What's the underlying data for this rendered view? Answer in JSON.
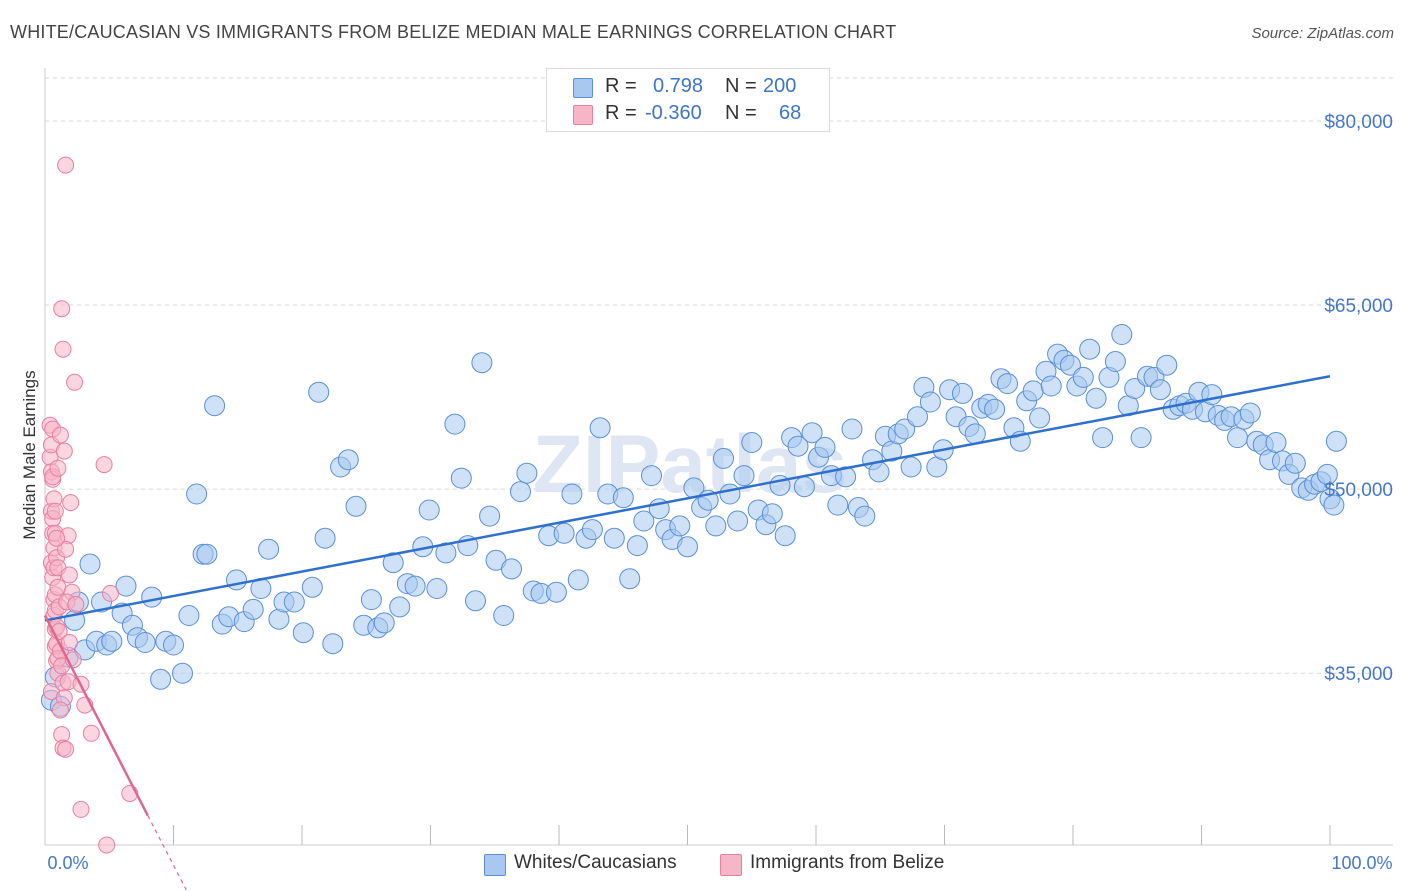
{
  "title": "WHITE/CAUCASIAN VS IMMIGRANTS FROM BELIZE MEDIAN MALE EARNINGS CORRELATION CHART",
  "source": "Source: ZipAtlas.com",
  "watermark": "ZIPatlas",
  "legend_top": {
    "rows": [
      {
        "r_label": "R =",
        "r_value": "0.798",
        "n_label": "N =",
        "n_value": "200"
      },
      {
        "r_label": "R =",
        "r_value": "-0.360",
        "n_label": "N =",
        "n_value": "68"
      }
    ]
  },
  "colors": {
    "blue_fill": "#a8c8f0",
    "blue_stroke": "#5a8fd8",
    "blue_line": "#2f6fce",
    "pink_fill": "#f7b5c8",
    "pink_stroke": "#e87fa0",
    "pink_line": "#e0668f",
    "accent_text": "#4477cc",
    "grid": "#d9d9d9"
  },
  "chart_data": {
    "type": "scatter",
    "title": "WHITE/CAUCASIAN VS IMMIGRANTS FROM BELIZE MEDIAN MALE EARNINGS CORRELATION CHART",
    "xlabel": "",
    "ylabel": "Median Male Earnings",
    "xlim": [
      0,
      100
    ],
    "ylim": [
      21000,
      83500
    ],
    "x_tick_labels": [
      "0.0%",
      "100.0%"
    ],
    "y_ticks": [
      35000,
      50000,
      65000,
      80000
    ],
    "y_tick_labels": [
      "$35,000",
      "$50,000",
      "$65,000",
      "$80,000"
    ],
    "legend": [
      "Whites/Caucasians",
      "Immigrants from Belize"
    ],
    "series": [
      {
        "name": "Whites/Caucasians",
        "r": 0.798,
        "n": 200,
        "trend": {
          "x": [
            0,
            100
          ],
          "y": [
            39300,
            59200
          ]
        },
        "points": [
          [
            0.5,
            32800
          ],
          [
            0.8,
            34700
          ],
          [
            1.2,
            32300
          ],
          [
            1.8,
            36300
          ],
          [
            2.3,
            39300
          ],
          [
            2.6,
            40800
          ],
          [
            3.1,
            36900
          ],
          [
            3.5,
            43900
          ],
          [
            4.0,
            37600
          ],
          [
            4.4,
            40800
          ],
          [
            4.8,
            37300
          ],
          [
            5.2,
            37600
          ],
          [
            6.0,
            39900
          ],
          [
            6.3,
            42100
          ],
          [
            6.8,
            38900
          ],
          [
            7.2,
            37900
          ],
          [
            7.8,
            37500
          ],
          [
            8.3,
            41200
          ],
          [
            9.0,
            34500
          ],
          [
            9.4,
            37600
          ],
          [
            10.0,
            37300
          ],
          [
            10.7,
            35000
          ],
          [
            11.2,
            39700
          ],
          [
            11.8,
            49600
          ],
          [
            12.3,
            44700
          ],
          [
            12.6,
            44700
          ],
          [
            13.2,
            56800
          ],
          [
            13.8,
            39000
          ],
          [
            14.3,
            39600
          ],
          [
            14.9,
            42600
          ],
          [
            15.5,
            39200
          ],
          [
            16.2,
            40200
          ],
          [
            16.8,
            41900
          ],
          [
            17.4,
            45100
          ],
          [
            18.2,
            39400
          ],
          [
            18.6,
            40800
          ],
          [
            19.4,
            40800
          ],
          [
            20.1,
            38300
          ],
          [
            20.8,
            42000
          ],
          [
            21.3,
            57900
          ],
          [
            21.8,
            46000
          ],
          [
            22.4,
            37400
          ],
          [
            23.0,
            51800
          ],
          [
            23.6,
            52400
          ],
          [
            24.2,
            48600
          ],
          [
            24.8,
            38900
          ],
          [
            25.4,
            41000
          ],
          [
            25.9,
            38700
          ],
          [
            26.4,
            39100
          ],
          [
            27.1,
            44000
          ],
          [
            27.6,
            40400
          ],
          [
            28.2,
            42300
          ],
          [
            28.8,
            42100
          ],
          [
            29.4,
            45300
          ],
          [
            29.9,
            48300
          ],
          [
            30.5,
            41900
          ],
          [
            31.2,
            44800
          ],
          [
            31.9,
            55300
          ],
          [
            32.4,
            50900
          ],
          [
            32.9,
            45400
          ],
          [
            33.5,
            40900
          ],
          [
            34.0,
            60300
          ],
          [
            34.6,
            47800
          ],
          [
            35.1,
            44200
          ],
          [
            35.7,
            39700
          ],
          [
            36.3,
            43500
          ],
          [
            37.0,
            49800
          ],
          [
            37.5,
            51300
          ],
          [
            38.0,
            41700
          ],
          [
            38.6,
            41500
          ],
          [
            39.2,
            46200
          ],
          [
            39.8,
            41600
          ],
          [
            40.4,
            46400
          ],
          [
            41.0,
            49600
          ],
          [
            41.5,
            42600
          ],
          [
            42.1,
            46000
          ],
          [
            42.6,
            46700
          ],
          [
            43.2,
            55000
          ],
          [
            43.8,
            49600
          ],
          [
            44.3,
            46000
          ],
          [
            45.0,
            49300
          ],
          [
            45.5,
            42700
          ],
          [
            46.1,
            45400
          ],
          [
            46.6,
            47400
          ],
          [
            47.2,
            51100
          ],
          [
            47.8,
            48400
          ],
          [
            48.3,
            46700
          ],
          [
            48.8,
            45900
          ],
          [
            49.4,
            47000
          ],
          [
            50.0,
            45300
          ],
          [
            50.5,
            50100
          ],
          [
            51.1,
            48500
          ],
          [
            51.6,
            49100
          ],
          [
            52.2,
            47000
          ],
          [
            52.8,
            52500
          ],
          [
            53.3,
            49600
          ],
          [
            53.9,
            47400
          ],
          [
            54.4,
            51100
          ],
          [
            55.0,
            53800
          ],
          [
            55.5,
            48300
          ],
          [
            56.1,
            47100
          ],
          [
            56.6,
            48000
          ],
          [
            57.2,
            50300
          ],
          [
            57.6,
            46200
          ],
          [
            58.1,
            54200
          ],
          [
            58.6,
            53500
          ],
          [
            59.1,
            50200
          ],
          [
            59.7,
            54600
          ],
          [
            60.2,
            52600
          ],
          [
            60.7,
            53400
          ],
          [
            61.2,
            51100
          ],
          [
            61.7,
            48700
          ],
          [
            62.3,
            51000
          ],
          [
            62.8,
            54900
          ],
          [
            63.3,
            48500
          ],
          [
            63.8,
            47800
          ],
          [
            64.4,
            52400
          ],
          [
            64.9,
            51400
          ],
          [
            65.4,
            54300
          ],
          [
            65.9,
            53100
          ],
          [
            66.4,
            54500
          ],
          [
            66.9,
            54900
          ],
          [
            67.4,
            51800
          ],
          [
            67.9,
            55900
          ],
          [
            68.4,
            58300
          ],
          [
            68.9,
            57100
          ],
          [
            69.4,
            51800
          ],
          [
            69.9,
            53200
          ],
          [
            70.4,
            58100
          ],
          [
            70.9,
            55900
          ],
          [
            71.4,
            57800
          ],
          [
            71.9,
            55100
          ],
          [
            72.4,
            54500
          ],
          [
            72.9,
            56600
          ],
          [
            73.4,
            56900
          ],
          [
            73.9,
            56500
          ],
          [
            74.4,
            59000
          ],
          [
            74.9,
            58600
          ],
          [
            75.4,
            55000
          ],
          [
            75.9,
            53900
          ],
          [
            76.4,
            57200
          ],
          [
            76.9,
            58000
          ],
          [
            77.4,
            55800
          ],
          [
            77.9,
            59600
          ],
          [
            78.3,
            58400
          ],
          [
            78.8,
            61000
          ],
          [
            79.3,
            60500
          ],
          [
            79.8,
            60100
          ],
          [
            80.3,
            58400
          ],
          [
            80.8,
            59100
          ],
          [
            81.3,
            61400
          ],
          [
            81.8,
            57400
          ],
          [
            82.3,
            54200
          ],
          [
            82.8,
            59100
          ],
          [
            83.3,
            60400
          ],
          [
            83.8,
            62600
          ],
          [
            84.3,
            56800
          ],
          [
            84.8,
            58200
          ],
          [
            85.3,
            54200
          ],
          [
            85.8,
            59200
          ],
          [
            86.3,
            59100
          ],
          [
            86.8,
            58100
          ],
          [
            87.3,
            60100
          ],
          [
            87.8,
            56500
          ],
          [
            88.3,
            56800
          ],
          [
            88.8,
            57000
          ],
          [
            89.3,
            56500
          ],
          [
            89.8,
            57900
          ],
          [
            90.3,
            56300
          ],
          [
            90.8,
            57700
          ],
          [
            91.3,
            56000
          ],
          [
            91.8,
            55600
          ],
          [
            92.3,
            55900
          ],
          [
            92.8,
            54200
          ],
          [
            93.3,
            55700
          ],
          [
            93.8,
            56200
          ],
          [
            94.3,
            53900
          ],
          [
            94.8,
            53600
          ],
          [
            95.3,
            52400
          ],
          [
            95.8,
            53800
          ],
          [
            96.3,
            52300
          ],
          [
            96.8,
            51200
          ],
          [
            97.3,
            52100
          ],
          [
            97.8,
            50100
          ],
          [
            98.3,
            49900
          ],
          [
            98.8,
            50400
          ],
          [
            99.3,
            50600
          ],
          [
            99.8,
            51200
          ],
          [
            100.0,
            49200
          ],
          [
            100.3,
            48700
          ],
          [
            100.5,
            53900
          ]
        ]
      },
      {
        "name": "Immigrants from Belize",
        "r": -0.36,
        "n": 68,
        "trend": {
          "x": [
            0,
            8
          ],
          "y": [
            39700,
            23400
          ]
        },
        "trend_dashed": {
          "x": [
            8,
            11
          ],
          "y": [
            23400,
            17000
          ]
        },
        "points": [
          [
            0.4,
            55200
          ],
          [
            0.4,
            52600
          ],
          [
            0.5,
            51400
          ],
          [
            0.5,
            48200
          ],
          [
            0.6,
            46400
          ],
          [
            0.5,
            44000
          ],
          [
            0.6,
            42800
          ],
          [
            0.7,
            41000
          ],
          [
            0.7,
            39700
          ],
          [
            0.8,
            38600
          ],
          [
            0.8,
            37200
          ],
          [
            0.9,
            36000
          ],
          [
            0.6,
            50800
          ],
          [
            0.6,
            47600
          ],
          [
            0.7,
            45200
          ],
          [
            0.7,
            43600
          ],
          [
            0.8,
            41400
          ],
          [
            0.8,
            40100
          ],
          [
            0.9,
            38800
          ],
          [
            0.9,
            37400
          ],
          [
            1.0,
            36200
          ],
          [
            1.0,
            35000
          ],
          [
            0.5,
            33500
          ],
          [
            0.5,
            53600
          ],
          [
            0.6,
            54900
          ],
          [
            0.6,
            51000
          ],
          [
            0.7,
            49200
          ],
          [
            0.8,
            48200
          ],
          [
            0.8,
            46400
          ],
          [
            0.9,
            44400
          ],
          [
            1.0,
            43600
          ],
          [
            1.0,
            42000
          ],
          [
            1.1,
            40400
          ],
          [
            1.1,
            38400
          ],
          [
            1.2,
            36800
          ],
          [
            1.3,
            35600
          ],
          [
            1.4,
            34200
          ],
          [
            1.5,
            33000
          ],
          [
            1.2,
            32000
          ],
          [
            1.3,
            30000
          ],
          [
            1.4,
            28900
          ],
          [
            1.6,
            28800
          ],
          [
            1.6,
            76400
          ],
          [
            1.3,
            64700
          ],
          [
            1.4,
            61400
          ],
          [
            2.3,
            58700
          ],
          [
            1.2,
            54400
          ],
          [
            1.5,
            53100
          ],
          [
            1.0,
            51700
          ],
          [
            2.0,
            48900
          ],
          [
            1.8,
            46200
          ],
          [
            1.6,
            45100
          ],
          [
            1.9,
            43000
          ],
          [
            2.1,
            41600
          ],
          [
            1.7,
            40800
          ],
          [
            2.4,
            40600
          ],
          [
            1.9,
            37500
          ],
          [
            2.2,
            36100
          ],
          [
            1.8,
            34300
          ],
          [
            2.8,
            34100
          ],
          [
            3.1,
            32400
          ],
          [
            3.6,
            30100
          ],
          [
            4.6,
            52000
          ],
          [
            5.1,
            41500
          ],
          [
            6.6,
            25200
          ],
          [
            2.8,
            23900
          ],
          [
            4.8,
            21000
          ],
          [
            0.9,
            46000
          ]
        ]
      }
    ]
  }
}
